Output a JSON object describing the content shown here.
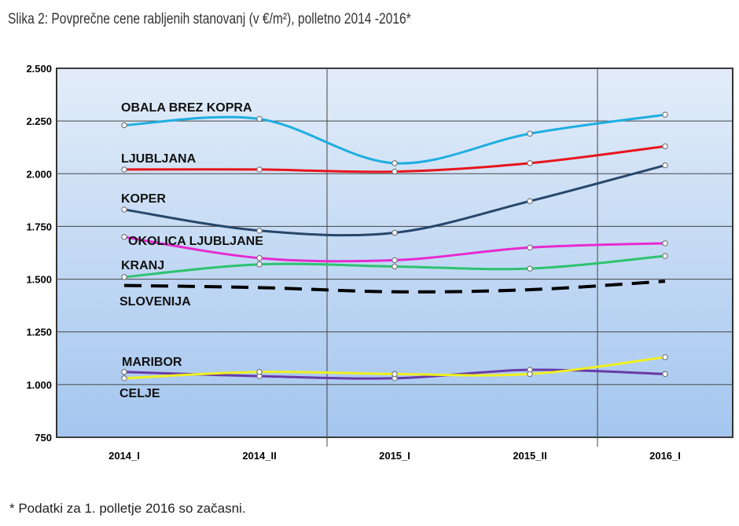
{
  "title": "Slika 2: Povprečne cene rabljenih stanovanj (v €/m²), polletno 2014 -2016*",
  "footnote": "* Podatki za 1. polletje 2016 so začasni.",
  "chart_data": {
    "type": "line",
    "title": "Slika 2: Povprečne cene rabljenih stanovanj (v €/m²), polletno 2014 -2016*",
    "categories": [
      "2014_I",
      "2014_II",
      "2015_I",
      "2015_II",
      "2016_I"
    ],
    "ylim": [
      750,
      2500
    ],
    "yticks": [
      750,
      1000,
      1250,
      1500,
      1750,
      2000,
      2250,
      2500
    ],
    "ytick_labels": [
      "750",
      "1.000",
      "1.250",
      "1.500",
      "1.750",
      "2.000",
      "2.250",
      "2.500"
    ],
    "grid": true,
    "smooth": true,
    "series": [
      {
        "name": "OBALA BREZ KOPRA",
        "color": "#1eaee0",
        "values": [
          2230,
          2260,
          2050,
          2190,
          2280
        ]
      },
      {
        "name": "LJUBLJANA",
        "color": "#e8141c",
        "values": [
          2020,
          2020,
          2010,
          2050,
          2130
        ]
      },
      {
        "name": "KOPER",
        "color": "#27476b",
        "values": [
          1830,
          1730,
          1720,
          1870,
          2040
        ]
      },
      {
        "name": "OKOLICA LJUBLJANE",
        "color": "#e62ad0",
        "values": [
          1700,
          1600,
          1590,
          1650,
          1670
        ]
      },
      {
        "name": "KRANJ",
        "color": "#2ec270",
        "values": [
          1510,
          1570,
          1560,
          1550,
          1610
        ]
      },
      {
        "name": "SLOVENIJA",
        "color": "#000000",
        "dashed": true,
        "values": [
          1470,
          1460,
          1440,
          1450,
          1490
        ]
      },
      {
        "name": "MARIBOR",
        "color": "#6a3aa8",
        "values": [
          1060,
          1040,
          1030,
          1070,
          1050
        ]
      },
      {
        "name": "CELJE",
        "color": "#f0f020",
        "values": [
          1030,
          1060,
          1050,
          1050,
          1130
        ]
      }
    ]
  }
}
